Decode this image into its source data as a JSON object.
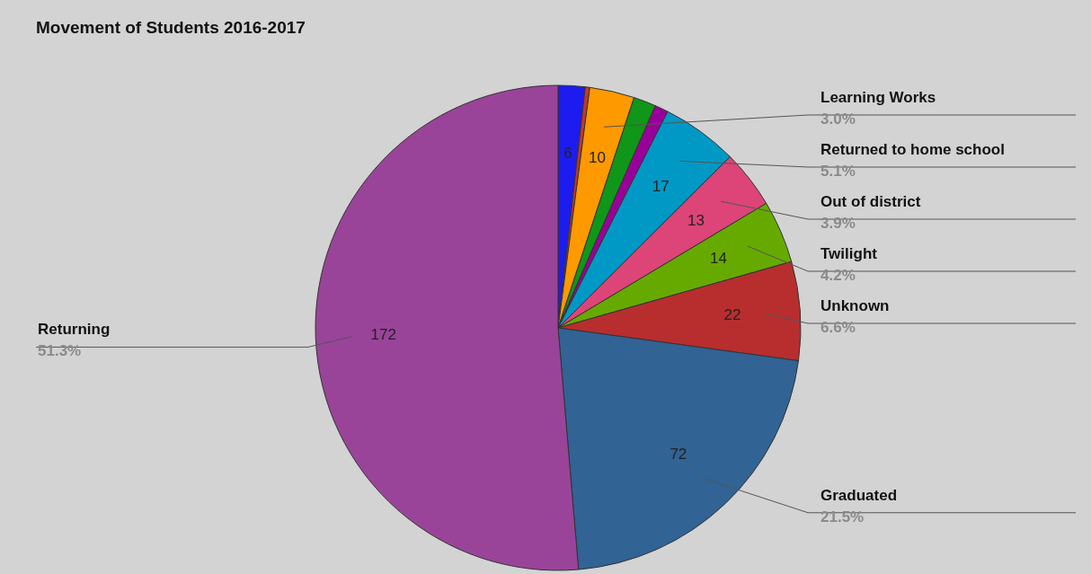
{
  "chart_data": {
    "type": "pie",
    "title": "Movement of Students 2016-2017",
    "categories": [
      null,
      null,
      "Learning Works",
      null,
      null,
      "Returned to home school",
      "Out of district",
      "Twilight",
      "Unknown",
      "Graduated",
      "Returning"
    ],
    "values": [
      6,
      1,
      10,
      5,
      3,
      17,
      13,
      14,
      22,
      72,
      172
    ],
    "colors": [
      "#1c1cf0",
      "#c0392b",
      "#ff9900",
      "#109618",
      "#990099",
      "#0099c6",
      "#dd4477",
      "#66aa00",
      "#b82e2e",
      "#316395",
      "#994499"
    ],
    "value_labels": [
      "6",
      null,
      "10",
      null,
      null,
      "17",
      "13",
      "14",
      "22",
      "72",
      "172"
    ],
    "annotations": [
      {
        "text": "3.0%",
        "x": "Learning Works"
      },
      {
        "text": "5.1%",
        "x": "Returned to home school"
      },
      {
        "text": "3.9%",
        "x": "Out of district"
      },
      {
        "text": "4.2%",
        "x": "Twilight"
      },
      {
        "text": "6.6%",
        "x": "Unknown"
      },
      {
        "text": "21.5%",
        "x": "Graduated"
      },
      {
        "text": "51.3%",
        "x": "Returning"
      }
    ]
  }
}
